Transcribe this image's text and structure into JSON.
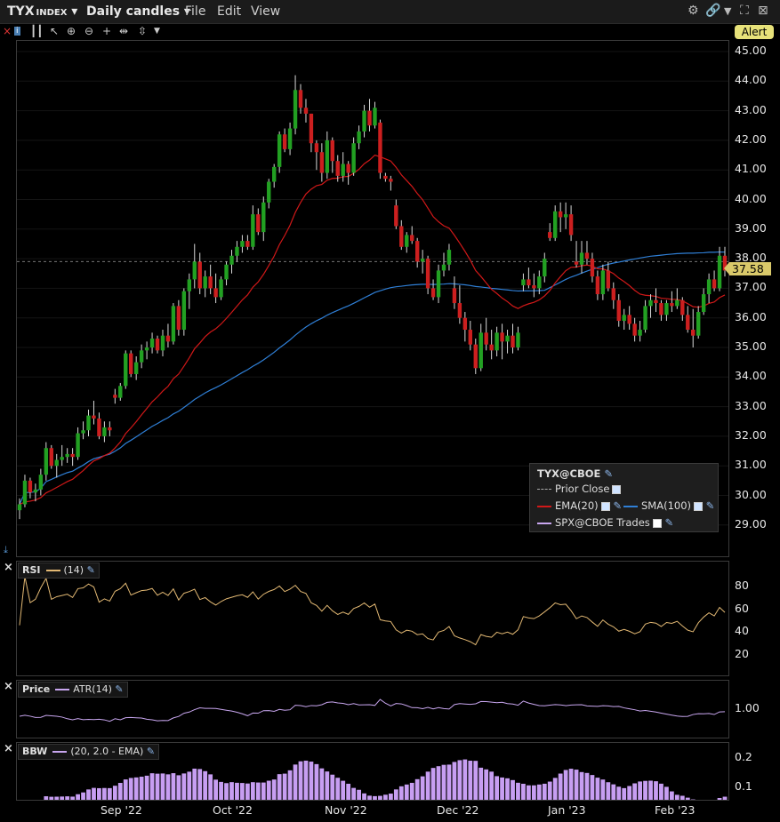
{
  "titlebar": {
    "symbol": "TYX",
    "symbol_sub": "INDEX",
    "candles": "Daily candles",
    "menu": [
      "File",
      "Edit",
      "View"
    ]
  },
  "toolbar": {
    "alert_label": "Alert"
  },
  "price_axis": [
    "45.00",
    "44.00",
    "43.00",
    "42.00",
    "41.00",
    "40.00",
    "39.00",
    "38.00",
    "37.00",
    "36.00",
    "35.00",
    "34.00",
    "33.00",
    "32.00",
    "31.00",
    "30.00",
    "29.00"
  ],
  "last_price": "37.58",
  "legend": {
    "title": "TYX@CBOE",
    "items": [
      {
        "label": "Prior Close"
      },
      {
        "label": "EMA(20)"
      },
      {
        "label": "SMA(100)"
      },
      {
        "label": "SPX@CBOE Trades"
      }
    ]
  },
  "rsi_panel": {
    "label": "RSI",
    "param": "(14)",
    "axis": [
      "80",
      "60",
      "40",
      "20"
    ]
  },
  "atr_panel": {
    "label": "Price",
    "param": "ATR(14)",
    "axis": [
      "1.00"
    ]
  },
  "bbw_panel": {
    "label": "BBW",
    "param": "(20, 2.0 - EMA)",
    "axis": [
      "0.2",
      "0.1"
    ]
  },
  "x_axis": [
    "Sep '22",
    "Oct '22",
    "Nov '22",
    "Dec '22",
    "Jan '23",
    "Feb '23"
  ],
  "colors": {
    "up": "#22a022",
    "down": "#cc1f1f",
    "ema": "#d01818",
    "sma": "#2f7fd6",
    "rsi": "#e2b873",
    "atr": "#c8a6ef",
    "bbw": "#c79ef2"
  },
  "chart_data": {
    "type": "candlestick",
    "ylim": [
      28.5,
      45.2
    ],
    "candles": [
      [
        29.5,
        29.9,
        29.2,
        29.7
      ],
      [
        29.7,
        30.7,
        29.6,
        30.5
      ],
      [
        30.5,
        30.6,
        29.9,
        30.1
      ],
      [
        30.1,
        30.4,
        29.8,
        30.2
      ],
      [
        30.2,
        30.9,
        30.0,
        30.7
      ],
      [
        30.7,
        31.8,
        30.5,
        31.6
      ],
      [
        31.6,
        31.7,
        30.9,
        31.0
      ],
      [
        31.0,
        31.4,
        30.6,
        31.2
      ],
      [
        31.2,
        31.7,
        31.0,
        31.3
      ],
      [
        31.3,
        31.6,
        31.1,
        31.4
      ],
      [
        31.4,
        31.6,
        31.0,
        31.3
      ],
      [
        31.3,
        32.3,
        31.2,
        32.1
      ],
      [
        32.1,
        32.5,
        31.9,
        32.2
      ],
      [
        32.2,
        32.9,
        32.0,
        32.7
      ],
      [
        32.7,
        33.2,
        32.4,
        32.6
      ],
      [
        32.6,
        32.8,
        31.9,
        32.0
      ],
      [
        32.0,
        32.5,
        31.8,
        32.3
      ],
      [
        32.3,
        32.5,
        32.0,
        32.2
      ],
      [
        33.4,
        33.6,
        33.1,
        33.3
      ],
      [
        33.3,
        33.8,
        33.2,
        33.7
      ],
      [
        33.7,
        34.9,
        33.6,
        34.8
      ],
      [
        34.8,
        34.9,
        34.0,
        34.1
      ],
      [
        34.1,
        34.7,
        33.9,
        34.5
      ],
      [
        34.5,
        35.1,
        34.3,
        34.9
      ],
      [
        34.9,
        35.2,
        34.6,
        35.0
      ],
      [
        35.0,
        35.5,
        34.8,
        35.3
      ],
      [
        35.3,
        35.4,
        34.8,
        34.9
      ],
      [
        34.9,
        35.6,
        34.7,
        35.4
      ],
      [
        35.4,
        35.8,
        35.0,
        35.2
      ],
      [
        35.2,
        36.5,
        35.1,
        36.4
      ],
      [
        36.4,
        36.6,
        35.4,
        35.6
      ],
      [
        35.6,
        37.0,
        35.4,
        36.9
      ],
      [
        36.9,
        37.5,
        36.3,
        37.3
      ],
      [
        37.3,
        38.5,
        37.0,
        37.9
      ],
      [
        37.9,
        38.2,
        36.8,
        37.0
      ],
      [
        37.0,
        37.6,
        36.7,
        37.4
      ],
      [
        37.4,
        37.8,
        36.8,
        37.0
      ],
      [
        37.0,
        37.5,
        36.5,
        36.7
      ],
      [
        36.7,
        37.4,
        36.6,
        37.3
      ],
      [
        37.3,
        37.9,
        37.1,
        37.8
      ],
      [
        37.8,
        38.3,
        37.5,
        38.1
      ],
      [
        38.1,
        38.6,
        37.9,
        38.4
      ],
      [
        38.4,
        38.8,
        38.2,
        38.6
      ],
      [
        38.6,
        38.8,
        38.3,
        38.4
      ],
      [
        38.4,
        39.8,
        38.3,
        39.5
      ],
      [
        39.5,
        39.7,
        38.8,
        38.9
      ],
      [
        38.9,
        40.1,
        38.6,
        39.9
      ],
      [
        39.9,
        40.7,
        39.7,
        40.6
      ],
      [
        40.6,
        41.2,
        40.4,
        41.1
      ],
      [
        41.1,
        42.3,
        40.9,
        42.2
      ],
      [
        42.2,
        42.4,
        41.6,
        41.7
      ],
      [
        41.7,
        42.6,
        41.5,
        42.4
      ],
      [
        42.4,
        44.2,
        42.2,
        43.7
      ],
      [
        43.7,
        43.9,
        42.9,
        43.1
      ],
      [
        43.1,
        43.4,
        42.6,
        42.9
      ],
      [
        42.9,
        42.9,
        41.6,
        41.9
      ],
      [
        41.9,
        42.0,
        41.0,
        41.6
      ],
      [
        41.6,
        41.9,
        40.6,
        40.9
      ],
      [
        40.9,
        42.3,
        40.7,
        42.0
      ],
      [
        42.0,
        42.1,
        40.9,
        41.3
      ],
      [
        41.3,
        41.5,
        40.6,
        40.8
      ],
      [
        40.8,
        41.6,
        40.6,
        41.2
      ],
      [
        41.2,
        41.3,
        40.5,
        40.9
      ],
      [
        40.9,
        42.1,
        40.8,
        41.9
      ],
      [
        41.9,
        42.5,
        41.7,
        42.3
      ],
      [
        42.3,
        43.2,
        42.1,
        43.0
      ],
      [
        43.0,
        43.4,
        42.3,
        42.5
      ],
      [
        42.5,
        43.3,
        42.4,
        43.1
      ],
      [
        42.6,
        42.7,
        40.7,
        40.9
      ],
      [
        40.8,
        40.9,
        40.6,
        40.7
      ],
      [
        40.7,
        40.8,
        40.3,
        40.6
      ],
      [
        39.8,
        40.0,
        39.0,
        39.1
      ],
      [
        39.1,
        39.3,
        38.3,
        38.4
      ],
      [
        38.4,
        38.9,
        38.2,
        38.8
      ],
      [
        38.8,
        39.1,
        38.5,
        38.6
      ],
      [
        38.6,
        38.7,
        37.7,
        37.9
      ],
      [
        37.9,
        38.3,
        37.5,
        38.0
      ],
      [
        38.0,
        38.1,
        36.8,
        37.0
      ],
      [
        37.0,
        37.3,
        36.6,
        36.7
      ],
      [
        36.7,
        37.8,
        36.5,
        37.6
      ],
      [
        37.6,
        38.2,
        37.4,
        37.8
      ],
      [
        37.8,
        38.5,
        37.6,
        38.3
      ],
      [
        37.0,
        37.4,
        36.3,
        36.5
      ],
      [
        36.5,
        37.1,
        35.8,
        36.0
      ],
      [
        36.0,
        36.2,
        35.2,
        35.6
      ],
      [
        35.6,
        35.9,
        34.9,
        35.1
      ],
      [
        35.1,
        35.3,
        34.1,
        34.3
      ],
      [
        34.3,
        35.8,
        34.2,
        35.5
      ],
      [
        35.5,
        36.0,
        34.9,
        35.1
      ],
      [
        35.1,
        35.6,
        34.6,
        34.9
      ],
      [
        34.9,
        35.7,
        34.7,
        35.5
      ],
      [
        35.5,
        35.8,
        34.6,
        35.2
      ],
      [
        35.2,
        35.6,
        34.8,
        35.4
      ],
      [
        35.4,
        35.8,
        34.8,
        35.0
      ],
      [
        35.0,
        35.7,
        34.9,
        35.5
      ],
      [
        37.1,
        37.5,
        36.9,
        37.3
      ],
      [
        37.3,
        37.7,
        37.0,
        37.1
      ],
      [
        37.1,
        37.5,
        36.7,
        37.0
      ],
      [
        37.0,
        37.6,
        36.8,
        37.4
      ],
      [
        37.4,
        38.2,
        37.2,
        38.0
      ],
      [
        38.9,
        39.2,
        38.6,
        38.7
      ],
      [
        38.7,
        39.8,
        38.6,
        39.6
      ],
      [
        39.6,
        39.9,
        38.9,
        39.4
      ],
      [
        39.4,
        39.9,
        39.0,
        39.5
      ],
      [
        39.5,
        39.8,
        38.6,
        38.8
      ],
      [
        37.9,
        38.6,
        37.7,
        37.8
      ],
      [
        37.8,
        38.6,
        37.5,
        38.2
      ],
      [
        38.2,
        38.6,
        37.8,
        38.0
      ],
      [
        38.0,
        38.2,
        37.2,
        37.4
      ],
      [
        37.4,
        37.6,
        36.6,
        36.8
      ],
      [
        36.8,
        37.8,
        36.6,
        37.6
      ],
      [
        37.6,
        37.9,
        36.9,
        37.0
      ],
      [
        37.0,
        37.2,
        36.3,
        36.6
      ],
      [
        36.6,
        36.8,
        35.7,
        35.9
      ],
      [
        35.9,
        36.3,
        35.6,
        36.1
      ],
      [
        36.1,
        36.4,
        35.6,
        35.8
      ],
      [
        35.8,
        36.0,
        35.2,
        35.4
      ],
      [
        35.4,
        35.9,
        35.2,
        35.6
      ],
      [
        35.6,
        36.6,
        35.5,
        36.4
      ],
      [
        36.4,
        36.8,
        36.0,
        36.6
      ],
      [
        36.6,
        37.0,
        36.2,
        36.5
      ],
      [
        36.5,
        36.6,
        35.9,
        36.1
      ],
      [
        36.1,
        36.6,
        35.9,
        36.5
      ],
      [
        36.5,
        36.9,
        36.2,
        36.4
      ],
      [
        36.4,
        37.0,
        36.3,
        36.6
      ],
      [
        36.6,
        36.7,
        35.9,
        36.1
      ],
      [
        36.1,
        36.4,
        35.5,
        35.6
      ],
      [
        35.6,
        36.3,
        35.0,
        35.4
      ],
      [
        35.4,
        36.4,
        35.3,
        36.2
      ],
      [
        36.2,
        37.0,
        36.1,
        36.8
      ],
      [
        36.8,
        37.5,
        36.5,
        37.3
      ],
      [
        37.3,
        37.6,
        36.9,
        37.0
      ],
      [
        37.0,
        38.4,
        36.9,
        38.1
      ],
      [
        38.1,
        38.4,
        37.4,
        37.6
      ]
    ]
  }
}
